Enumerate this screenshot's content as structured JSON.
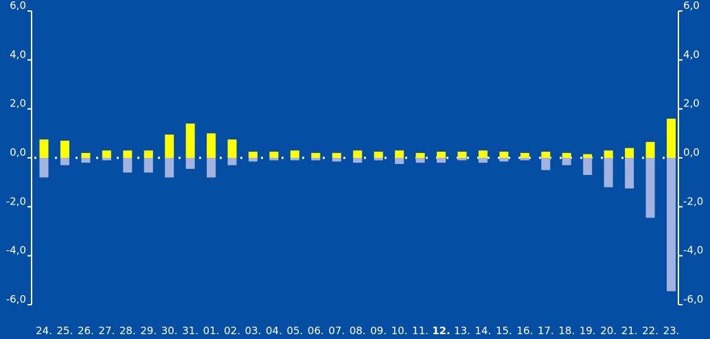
{
  "chart_data": {
    "type": "bar",
    "stacked": false,
    "categories": [
      "24.",
      "25.",
      "26.",
      "27.",
      "28.",
      "29.",
      "30.",
      "31.",
      "01.",
      "02.",
      "03.",
      "04.",
      "05.",
      "06.",
      "07.",
      "08.",
      "09.",
      "10.",
      "11.",
      "12.",
      "13.",
      "14.",
      "15.",
      "16.",
      "17.",
      "18.",
      "19.",
      "20.",
      "21.",
      "22.",
      "23."
    ],
    "series": [
      {
        "color": "#ffff00",
        "values": [
          0.75,
          0.7,
          0.2,
          0.3,
          0.3,
          0.3,
          0.95,
          1.4,
          1.0,
          0.75,
          0.25,
          0.25,
          0.3,
          0.2,
          0.2,
          0.3,
          0.25,
          0.3,
          0.2,
          0.25,
          0.25,
          0.3,
          0.25,
          0.2,
          0.25,
          0.2,
          0.15,
          0.3,
          0.4,
          0.65,
          1.6
        ]
      },
      {
        "color": "#a3b3e0",
        "values": [
          -0.8,
          -0.3,
          -0.2,
          -0.1,
          -0.6,
          -0.6,
          -0.8,
          -0.45,
          -0.8,
          -0.3,
          -0.15,
          -0.1,
          -0.1,
          -0.1,
          -0.15,
          -0.2,
          -0.1,
          -0.25,
          -0.2,
          -0.2,
          -0.1,
          -0.2,
          -0.15,
          -0.1,
          -0.5,
          -0.3,
          -0.7,
          -1.2,
          -1.25,
          -2.45,
          -5.45
        ]
      }
    ],
    "y_ticks": [
      "6,0",
      "4,0",
      "2,0",
      "0,0",
      "-2,0",
      "-4,0",
      "-6,0"
    ],
    "y_tick_values": [
      6,
      4,
      2,
      0,
      -2,
      -4,
      -6
    ],
    "ylim": [
      -6,
      6
    ],
    "bold_category": "12.",
    "zero_line": "dashed",
    "grid": false,
    "title": "",
    "xlabel": "",
    "ylabel": ""
  }
}
